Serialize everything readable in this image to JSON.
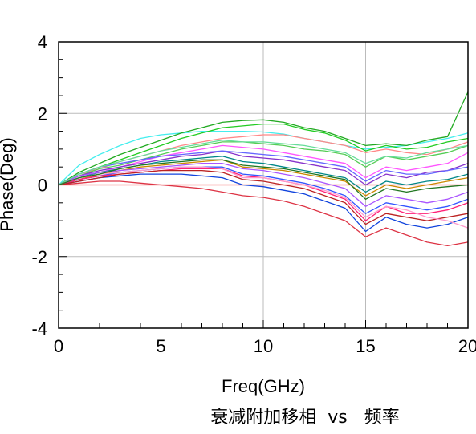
{
  "chart_data": {
    "type": "line",
    "title": "",
    "caption": "衰减附加移相  vs   频率",
    "xlabel": "Freq(GHz)",
    "ylabel": "Phase(Deg)",
    "xlim": [
      0,
      20
    ],
    "ylim": [
      -4,
      4
    ],
    "x_ticks": [
      0,
      5,
      10,
      15,
      20
    ],
    "y_ticks": [
      -4,
      -2,
      0,
      2,
      4
    ],
    "x_tick_labels": [
      "0",
      "5",
      "10",
      "15",
      "20"
    ],
    "y_tick_labels": [
      "-4",
      "-2",
      "0",
      "2",
      "4"
    ],
    "grid": true,
    "legend": "none",
    "x": [
      0,
      1,
      2,
      3,
      4,
      5,
      6,
      7,
      8,
      9,
      10,
      11,
      12,
      13,
      14,
      15,
      16,
      17,
      18,
      19,
      20
    ],
    "series": [
      {
        "color": "#ee2222",
        "values": [
          0,
          0,
          0,
          0,
          0,
          0,
          0,
          0,
          0,
          0,
          0,
          0,
          0,
          0,
          0,
          0,
          0,
          0,
          0,
          0,
          0
        ]
      },
      {
        "color": "#44eeee",
        "values": [
          0,
          0.55,
          0.85,
          1.1,
          1.3,
          1.4,
          1.45,
          1.5,
          1.5,
          1.5,
          1.48,
          1.42,
          1.3,
          1.2,
          1.1,
          1.0,
          1.05,
          1.1,
          1.2,
          1.3,
          1.45
        ]
      },
      {
        "color": "#22aa22",
        "values": [
          0,
          0.35,
          0.6,
          0.85,
          1.05,
          1.25,
          1.45,
          1.6,
          1.75,
          1.8,
          1.82,
          1.75,
          1.6,
          1.5,
          1.3,
          1.1,
          1.15,
          1.1,
          1.25,
          1.35,
          2.6
        ]
      },
      {
        "color": "#22cc22",
        "values": [
          0,
          0.3,
          0.5,
          0.7,
          0.9,
          1.1,
          1.3,
          1.45,
          1.6,
          1.65,
          1.7,
          1.7,
          1.55,
          1.45,
          1.25,
          0.95,
          1.1,
          1.0,
          1.05,
          1.2,
          1.3
        ]
      },
      {
        "color": "#ff8888",
        "values": [
          0,
          0.3,
          0.45,
          0.65,
          0.8,
          0.95,
          1.1,
          1.2,
          1.3,
          1.35,
          1.4,
          1.4,
          1.3,
          1.2,
          1.1,
          0.9,
          1.0,
          0.9,
          0.85,
          1.0,
          1.2
        ]
      },
      {
        "color": "#55cc55",
        "values": [
          0,
          0.25,
          0.45,
          0.55,
          0.7,
          0.85,
          1.0,
          1.1,
          1.2,
          1.2,
          1.15,
          1.1,
          1.0,
          0.95,
          0.85,
          0.5,
          0.8,
          0.7,
          0.8,
          0.9,
          1.1
        ]
      },
      {
        "color": "#ff55ff",
        "values": [
          0,
          0.2,
          0.35,
          0.5,
          0.65,
          0.8,
          0.9,
          1.0,
          1.1,
          1.05,
          1.0,
          0.9,
          0.8,
          0.7,
          0.6,
          0.2,
          0.5,
          0.4,
          0.5,
          0.6,
          0.9
        ]
      },
      {
        "color": "#8833cc",
        "values": [
          0,
          0.25,
          0.4,
          0.5,
          0.6,
          0.7,
          0.8,
          0.85,
          0.95,
          0.8,
          0.75,
          0.7,
          0.6,
          0.5,
          0.4,
          0.0,
          0.3,
          0.2,
          0.35,
          0.4,
          0.6
        ]
      },
      {
        "color": "#008888",
        "values": [
          0,
          0.2,
          0.35,
          0.45,
          0.55,
          0.65,
          0.7,
          0.75,
          0.8,
          0.65,
          0.6,
          0.5,
          0.4,
          0.3,
          0.2,
          -0.2,
          0.1,
          0.0,
          0.1,
          0.15,
          0.3
        ]
      },
      {
        "color": "#cc8800",
        "values": [
          0,
          0.15,
          0.3,
          0.4,
          0.5,
          0.55,
          0.6,
          0.65,
          0.7,
          0.5,
          0.45,
          0.4,
          0.3,
          0.2,
          0.1,
          -0.3,
          0.0,
          -0.1,
          0.0,
          0.1,
          0.2
        ]
      },
      {
        "color": "#3355ff",
        "values": [
          0,
          0.15,
          0.25,
          0.35,
          0.4,
          0.45,
          0.5,
          0.5,
          0.5,
          0.3,
          0.25,
          0.15,
          0.05,
          -0.1,
          -0.3,
          -0.8,
          -0.5,
          -0.6,
          -0.7,
          -0.6,
          -0.4
        ]
      },
      {
        "color": "#ff2277",
        "values": [
          0,
          0.15,
          0.25,
          0.3,
          0.35,
          0.4,
          0.45,
          0.45,
          0.45,
          0.25,
          0.2,
          0.1,
          0.0,
          -0.2,
          -0.4,
          -1.0,
          -0.6,
          -0.8,
          -0.8,
          -0.7,
          -0.5
        ]
      },
      {
        "color": "#1144dd",
        "values": [
          0,
          0.1,
          0.2,
          0.25,
          0.3,
          0.3,
          0.3,
          0.25,
          0.2,
          0.0,
          -0.05,
          -0.15,
          -0.25,
          -0.45,
          -0.65,
          -1.3,
          -0.9,
          -1.1,
          -1.2,
          -1.1,
          -0.9
        ]
      },
      {
        "color": "#dd3344",
        "values": [
          0,
          0.05,
          0.1,
          0.1,
          0.05,
          0.0,
          -0.05,
          -0.1,
          -0.2,
          -0.3,
          -0.35,
          -0.45,
          -0.6,
          -0.8,
          -1.0,
          -1.45,
          -1.2,
          -1.4,
          -1.6,
          -1.7,
          -1.6
        ]
      },
      {
        "color": "#6666ff",
        "values": [
          0,
          0.3,
          0.5,
          0.6,
          0.7,
          0.8,
          0.85,
          0.9,
          0.95,
          0.9,
          0.85,
          0.8,
          0.7,
          0.6,
          0.5,
          0.1,
          0.4,
          0.3,
          0.3,
          0.4,
          0.5
        ]
      },
      {
        "color": "#aa55ff",
        "values": [
          0,
          0.25,
          0.35,
          0.4,
          0.45,
          0.5,
          0.55,
          0.6,
          0.6,
          0.45,
          0.4,
          0.3,
          0.2,
          0.05,
          -0.1,
          -0.6,
          -0.3,
          -0.4,
          -0.5,
          -0.4,
          -0.2
        ]
      },
      {
        "color": "#bb2222",
        "values": [
          0,
          0.1,
          0.2,
          0.3,
          0.35,
          0.4,
          0.4,
          0.4,
          0.35,
          0.15,
          0.1,
          0.0,
          -0.1,
          -0.3,
          -0.5,
          -1.1,
          -0.8,
          -0.9,
          -1.0,
          -0.9,
          -0.8
        ]
      },
      {
        "color": "#66dd99",
        "values": [
          0,
          0.3,
          0.5,
          0.65,
          0.8,
          0.95,
          1.05,
          1.15,
          1.25,
          1.2,
          1.2,
          1.15,
          1.1,
          1.0,
          0.9,
          0.6,
          0.8,
          0.75,
          0.9,
          1.0,
          1.1
        ]
      },
      {
        "color": "#ff99cc",
        "values": [
          0,
          0.2,
          0.3,
          0.35,
          0.4,
          0.45,
          0.5,
          0.5,
          0.45,
          0.2,
          0.2,
          0.1,
          0.0,
          -0.15,
          -0.35,
          -0.9,
          -0.6,
          -0.7,
          -0.9,
          -1.0,
          -1.2
        ]
      },
      {
        "color": "#227722",
        "values": [
          0,
          0.2,
          0.3,
          0.45,
          0.55,
          0.6,
          0.65,
          0.7,
          0.7,
          0.55,
          0.5,
          0.45,
          0.35,
          0.25,
          0.15,
          -0.4,
          -0.1,
          -0.2,
          -0.1,
          -0.05,
          0.0
        ]
      }
    ]
  }
}
